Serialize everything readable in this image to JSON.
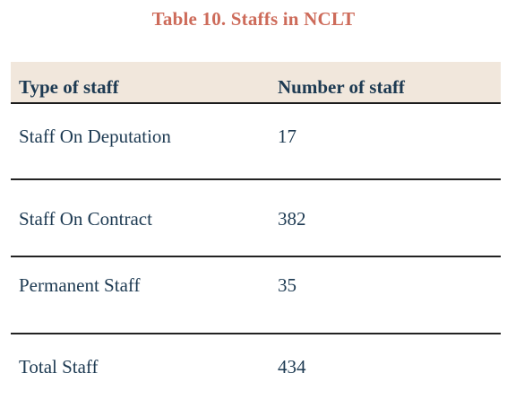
{
  "table": {
    "title": "Table 10. Staffs in NCLT",
    "headers": [
      "Type of staff",
      "Number of staff"
    ],
    "rows": [
      {
        "type": "Staff On Deputation",
        "count": "17"
      },
      {
        "type": "Staff On Contract",
        "count": "382"
      },
      {
        "type": "Permanent Staff",
        "count": "35"
      },
      {
        "type": "Total Staff",
        "count": "434"
      }
    ]
  }
}
